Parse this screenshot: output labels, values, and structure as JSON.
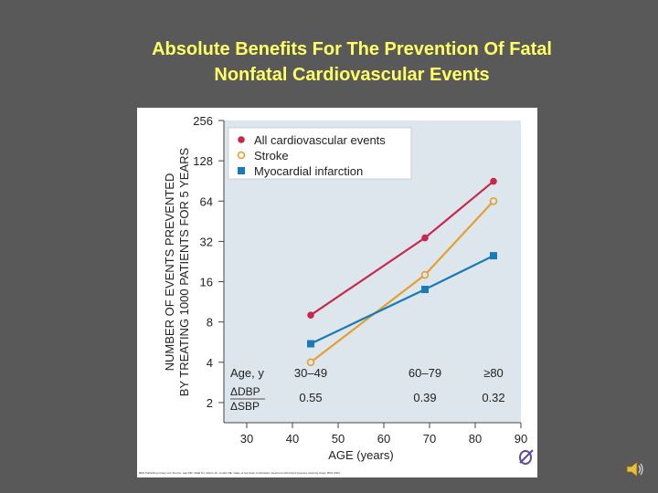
{
  "slide": {
    "title_line1": "Absolute Benefits For The Prevention Of Fatal",
    "title_line2": "Nonfatal Cardiovascular Events",
    "citation": "BMJ Publishing Group Ltd; Source: Law MR, Wald NJ, Morris JK, Jordan RE. Value of low dose combination treatment with blood pressure lowering drugs. BMJ 2003."
  },
  "colors": {
    "background": "#595959",
    "title": "#ffff66",
    "plot_bg": "#dde6ec",
    "all_cv": "#c8284a",
    "stroke": "#e3a030",
    "mi": "#1a7ab5"
  },
  "chart_data": {
    "type": "line",
    "title": "",
    "xlabel": "AGE (years)",
    "ylabel_line1": "NUMBER OF EVENTS PREVENTED",
    "ylabel_line2": "BY TREATING 1000 PATIENTS FOR 5 YEARS",
    "xlim": [
      25,
      90
    ],
    "ylim_log2": [
      0.5,
      8
    ],
    "yscale": "log2",
    "x_ticks": [
      30,
      40,
      50,
      60,
      70,
      80,
      90
    ],
    "y_ticks": [
      2,
      4,
      8,
      16,
      32,
      64,
      128,
      256
    ],
    "legend_position": "top-left",
    "series": [
      {
        "name": "All cardiovascular events",
        "key": "all_cv",
        "marker": "filled-circle",
        "x": [
          44,
          69,
          84
        ],
        "y": [
          9,
          34,
          90
        ]
      },
      {
        "name": "Stroke",
        "key": "stroke",
        "marker": "open-circle",
        "x": [
          44,
          69,
          84
        ],
        "y": [
          4,
          18,
          64
        ]
      },
      {
        "name": "Myocardial infarction",
        "key": "mi",
        "marker": "square",
        "x": [
          44,
          69,
          84
        ],
        "y": [
          5.5,
          14,
          25
        ]
      }
    ],
    "age_table": {
      "row1_label": "Age, y",
      "row2_label_top": "ΔDBP",
      "row2_label_bottom": "ΔSBP",
      "columns": [
        {
          "x": 44,
          "age": "30–49",
          "ratio": "0.55"
        },
        {
          "x": 69,
          "age": "60–79",
          "ratio": "0.39"
        },
        {
          "x": 84,
          "age": "≥80",
          "ratio": "0.32"
        }
      ]
    }
  }
}
